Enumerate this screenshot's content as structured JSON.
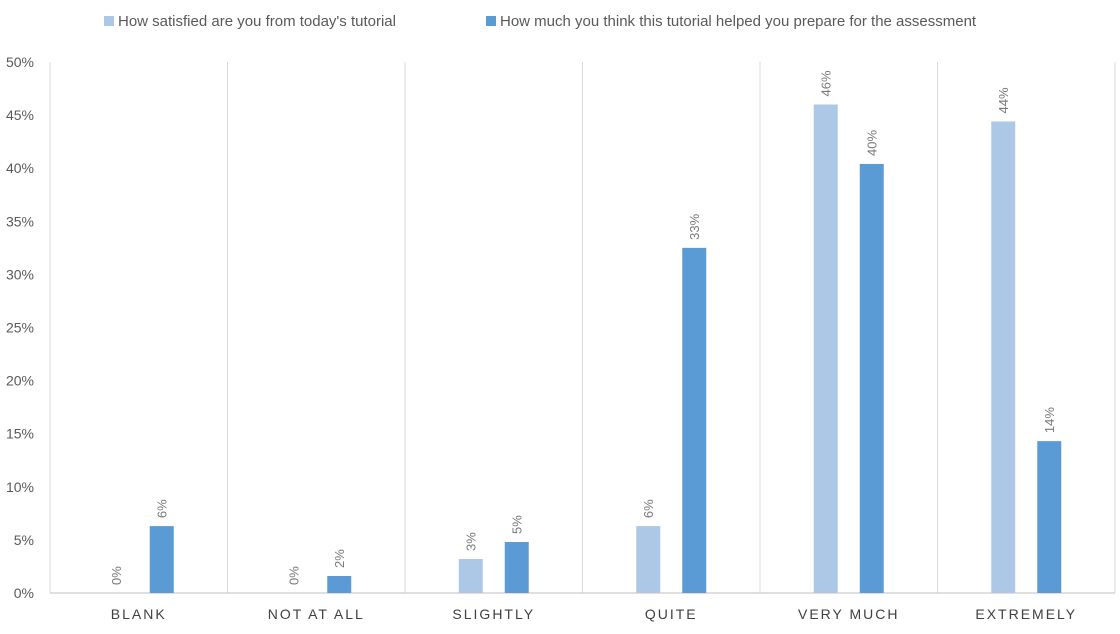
{
  "chart_data": {
    "type": "bar",
    "categories": [
      "BLANK",
      "NOT AT ALL",
      "SLIGHTLY",
      "QUITE",
      "VERY MUCH",
      "EXTREMELY"
    ],
    "series": [
      {
        "name": "How satisfied are you from today's tutorial",
        "color": "#adc8e6",
        "values": [
          0,
          0,
          3.2,
          6.3,
          46.0,
          44.4
        ],
        "labels": [
          "0%",
          "0%",
          "3%",
          "6%",
          "46%",
          "44%"
        ]
      },
      {
        "name": "How much you think this tutorial helped you prepare for the assessment",
        "color": "#5b9bd5",
        "values": [
          6.3,
          1.6,
          4.8,
          32.5,
          40.4,
          14.3
        ],
        "labels": [
          "6%",
          "2%",
          "5%",
          "33%",
          "40%",
          "14%"
        ]
      }
    ],
    "ylim": [
      0,
      50
    ],
    "yticks": [
      "0%",
      "5%",
      "10%",
      "15%",
      "20%",
      "25%",
      "30%",
      "35%",
      "40%",
      "45%",
      "50%"
    ],
    "legend_position": "top",
    "grid": "vertical category separators"
  }
}
